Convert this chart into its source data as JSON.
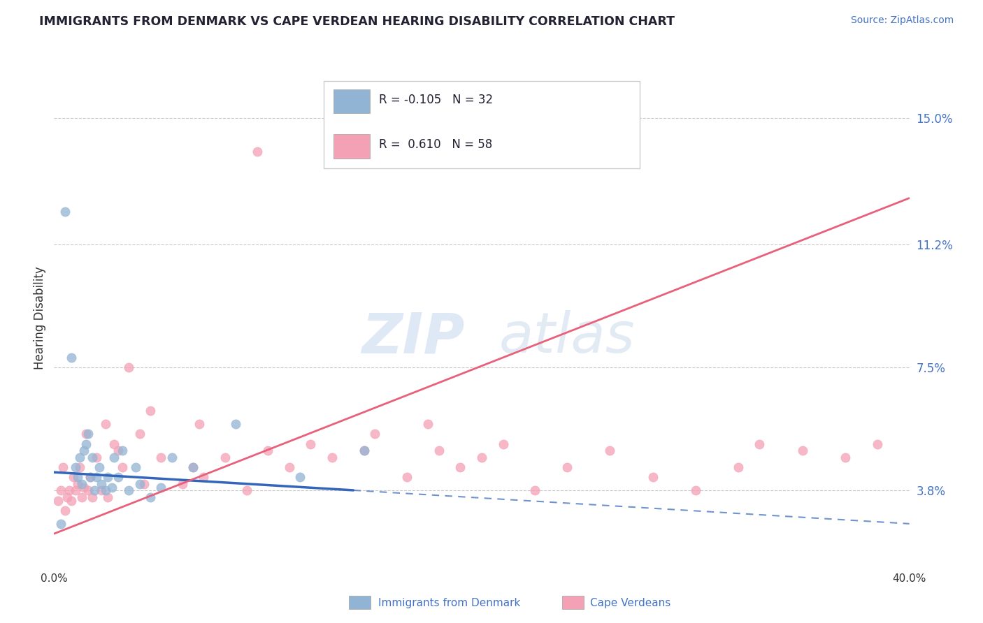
{
  "title": "IMMIGRANTS FROM DENMARK VS CAPE VERDEAN HEARING DISABILITY CORRELATION CHART",
  "source": "Source: ZipAtlas.com",
  "ylabel": "Hearing Disability",
  "ytick_values": [
    3.8,
    7.5,
    11.2,
    15.0
  ],
  "ytick_labels": [
    "3.8%",
    "7.5%",
    "11.2%",
    "15.0%"
  ],
  "xlim": [
    0.0,
    40.0
  ],
  "ylim": [
    1.5,
    16.5
  ],
  "legend_denmark_r": "-0.105",
  "legend_denmark_n": "32",
  "legend_capeverde_r": "0.610",
  "legend_capeverde_n": "58",
  "denmark_color": "#92b4d4",
  "capeverde_color": "#f4a0b5",
  "denmark_line_color": "#3366bb",
  "capeverde_line_color": "#e8607a",
  "watermark_zip": "ZIP",
  "watermark_atlas": "atlas",
  "dk_line_x0": 0.0,
  "dk_line_x1": 40.0,
  "dk_line_y0": 4.35,
  "dk_line_y1": 2.8,
  "cv_line_x0": 0.0,
  "cv_line_x1": 40.0,
  "cv_line_y0": 2.5,
  "cv_line_y1": 12.6,
  "denmark_scatter_x": [
    0.5,
    0.8,
    1.0,
    1.2,
    1.3,
    1.4,
    1.5,
    1.6,
    1.7,
    1.8,
    1.9,
    2.0,
    2.1,
    2.2,
    2.4,
    2.5,
    2.7,
    2.8,
    3.0,
    3.2,
    3.5,
    3.8,
    4.0,
    4.5,
    5.0,
    5.5,
    6.5,
    8.5,
    11.5,
    14.5,
    0.3,
    1.1
  ],
  "denmark_scatter_y": [
    12.2,
    7.8,
    4.5,
    4.8,
    4.0,
    5.0,
    5.2,
    5.5,
    4.2,
    4.8,
    3.8,
    4.2,
    4.5,
    4.0,
    3.8,
    4.2,
    3.9,
    4.8,
    4.2,
    5.0,
    3.8,
    4.5,
    4.0,
    3.6,
    3.9,
    4.8,
    4.5,
    5.8,
    4.2,
    5.0,
    2.8,
    4.2
  ],
  "capeverde_scatter_x": [
    0.2,
    0.3,
    0.4,
    0.5,
    0.6,
    0.7,
    0.8,
    0.9,
    1.0,
    1.1,
    1.2,
    1.3,
    1.4,
    1.5,
    1.6,
    1.7,
    1.8,
    2.0,
    2.2,
    2.4,
    2.5,
    2.8,
    3.0,
    3.2,
    3.5,
    4.0,
    4.2,
    4.5,
    5.0,
    6.0,
    6.5,
    7.0,
    8.0,
    9.0,
    10.0,
    11.0,
    12.0,
    13.0,
    14.5,
    15.0,
    16.5,
    17.5,
    18.0,
    19.0,
    20.0,
    21.0,
    22.5,
    24.0,
    26.0,
    28.0,
    30.0,
    32.0,
    33.0,
    35.0,
    37.0,
    38.5,
    9.5,
    6.8
  ],
  "capeverde_scatter_y": [
    3.5,
    3.8,
    4.5,
    3.2,
    3.6,
    3.8,
    3.5,
    4.2,
    3.8,
    4.0,
    4.5,
    3.6,
    3.9,
    5.5,
    3.8,
    4.2,
    3.6,
    4.8,
    3.8,
    5.8,
    3.6,
    5.2,
    5.0,
    4.5,
    7.5,
    5.5,
    4.0,
    6.2,
    4.8,
    4.0,
    4.5,
    4.2,
    4.8,
    3.8,
    5.0,
    4.5,
    5.2,
    4.8,
    5.0,
    5.5,
    4.2,
    5.8,
    5.0,
    4.5,
    4.8,
    5.2,
    3.8,
    4.5,
    5.0,
    4.2,
    3.8,
    4.5,
    5.2,
    5.0,
    4.8,
    5.2,
    14.0,
    5.8
  ]
}
